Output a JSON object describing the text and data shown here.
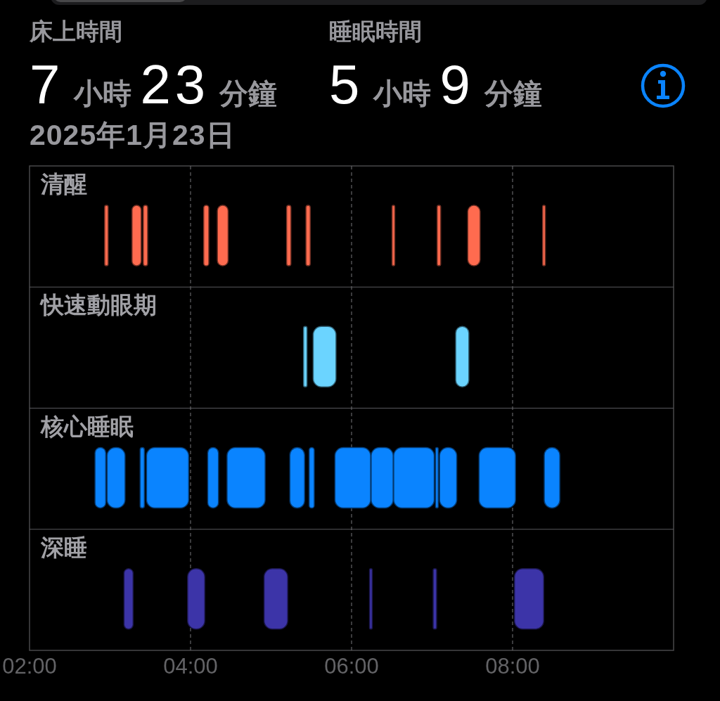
{
  "chart_data": {
    "type": "bar",
    "orientation": "horizontal",
    "subtitle": "2025年1月23日",
    "annotations": [
      "床上時間",
      "7小時23分鐘",
      "睡眠時間",
      "5小時9分鐘"
    ],
    "categories": [
      "清醒",
      "快速動眼期",
      "核心睡眠",
      "深睡"
    ],
    "xlim": [
      2,
      10
    ],
    "xticks": [
      {
        "value": 2,
        "label": "02:00"
      },
      {
        "value": 4,
        "label": "04:00"
      },
      {
        "value": 6,
        "label": "06:00"
      },
      {
        "value": 8,
        "label": "08:00"
      }
    ],
    "grid": true,
    "series": [
      {
        "color": "#0a84ff",
        "values": [
          null,
          null,
          0.12,
          null
        ],
        "base": [
          null,
          null,
          2.82,
          null
        ]
      },
      {
        "color": "#ff6b4f",
        "values": [
          0.03,
          null,
          null,
          null
        ],
        "base": [
          2.94,
          null,
          null,
          null
        ]
      },
      {
        "color": "#0a84ff",
        "values": [
          null,
          null,
          0.21,
          null
        ],
        "base": [
          null,
          null,
          2.97,
          null
        ]
      },
      {
        "color": "#3c34a8",
        "values": [
          null,
          null,
          null,
          0.1
        ],
        "base": [
          null,
          null,
          null,
          3.18
        ]
      },
      {
        "color": "#ff6b4f",
        "values": [
          0.1,
          null,
          null,
          null
        ],
        "base": [
          3.28,
          null,
          null,
          null
        ]
      },
      {
        "color": "#0a84ff",
        "values": [
          null,
          null,
          0.04,
          null
        ],
        "base": [
          null,
          null,
          3.38,
          null
        ]
      },
      {
        "color": "#ff6b4f",
        "values": [
          0.04,
          null,
          null,
          null
        ],
        "base": [
          3.42,
          null,
          null,
          null
        ]
      },
      {
        "color": "#0a84ff",
        "values": [
          null,
          null,
          0.51,
          null
        ],
        "base": [
          null,
          null,
          3.46,
          null
        ]
      },
      {
        "color": "#3c34a8",
        "values": [
          null,
          null,
          null,
          0.2
        ],
        "base": [
          null,
          null,
          null,
          3.97
        ]
      },
      {
        "color": "#ff6b4f",
        "values": [
          0.05,
          null,
          null,
          null
        ],
        "base": [
          4.17,
          null,
          null,
          null
        ]
      },
      {
        "color": "#0a84ff",
        "values": [
          null,
          null,
          0.12,
          null
        ],
        "base": [
          null,
          null,
          4.22,
          null
        ]
      },
      {
        "color": "#ff6b4f",
        "values": [
          0.12,
          null,
          null,
          null
        ],
        "base": [
          4.34,
          null,
          null,
          null
        ]
      },
      {
        "color": "#0a84ff",
        "values": [
          null,
          null,
          0.46,
          null
        ],
        "base": [
          null,
          null,
          4.46,
          null
        ]
      },
      {
        "color": "#3c34a8",
        "values": [
          null,
          null,
          null,
          0.28
        ],
        "base": [
          null,
          null,
          null,
          4.92
        ]
      },
      {
        "color": "#ff6b4f",
        "values": [
          0.04,
          null,
          null,
          null
        ],
        "base": [
          5.2,
          null,
          null,
          null
        ]
      },
      {
        "color": "#0a84ff",
        "values": [
          null,
          null,
          0.17,
          null
        ],
        "base": [
          null,
          null,
          5.24,
          null
        ]
      },
      {
        "color": "#6bd4ff",
        "values": [
          null,
          0.03,
          null,
          null
        ],
        "base": [
          null,
          5.41,
          null,
          null
        ]
      },
      {
        "color": "#ff6b4f",
        "values": [
          0.04,
          null,
          null,
          null
        ],
        "base": [
          5.44,
          null,
          null,
          null
        ]
      },
      {
        "color": "#0a84ff",
        "values": [
          null,
          null,
          0.05,
          null
        ],
        "base": [
          null,
          null,
          5.48,
          null
        ]
      },
      {
        "color": "#6bd4ff",
        "values": [
          null,
          0.27,
          null,
          null
        ],
        "base": [
          null,
          5.53,
          null,
          null
        ]
      },
      {
        "color": "#0a84ff",
        "values": [
          null,
          null,
          0.43,
          null
        ],
        "base": [
          null,
          null,
          5.8,
          null
        ]
      },
      {
        "color": "#3c34a8",
        "values": [
          null,
          null,
          null,
          0.02
        ],
        "base": [
          null,
          null,
          null,
          6.23
        ]
      },
      {
        "color": "#0a84ff",
        "values": [
          null,
          null,
          0.26,
          null
        ],
        "base": [
          null,
          null,
          6.25,
          null
        ]
      },
      {
        "color": "#ff6b4f",
        "values": [
          0.02,
          null,
          null,
          null
        ],
        "base": [
          6.51,
          null,
          null,
          null
        ]
      },
      {
        "color": "#0a84ff",
        "values": [
          null,
          null,
          0.49,
          null
        ],
        "base": [
          null,
          null,
          6.53,
          null
        ]
      },
      {
        "color": "#3c34a8",
        "values": [
          null,
          null,
          null,
          0.03
        ],
        "base": [
          null,
          null,
          null,
          7.02
        ]
      },
      {
        "color": "#0a84ff",
        "values": [
          null,
          null,
          0.02,
          null
        ],
        "base": [
          null,
          null,
          7.05,
          null
        ]
      },
      {
        "color": "#ff6b4f",
        "values": [
          0.03,
          null,
          null,
          null
        ],
        "base": [
          7.07,
          null,
          null,
          null
        ]
      },
      {
        "color": "#0a84ff",
        "values": [
          null,
          null,
          0.2,
          null
        ],
        "base": [
          null,
          null,
          7.1,
          null
        ]
      },
      {
        "color": "#6bd4ff",
        "values": [
          null,
          0.15,
          null,
          null
        ],
        "base": [
          null,
          7.3,
          null,
          null
        ]
      },
      {
        "color": "#ff6b4f",
        "values": [
          0.14,
          null,
          null,
          null
        ],
        "base": [
          7.45,
          null,
          null,
          null
        ]
      },
      {
        "color": "#0a84ff",
        "values": [
          null,
          null,
          0.44,
          null
        ],
        "base": [
          null,
          null,
          7.59,
          null
        ]
      },
      {
        "color": "#3c34a8",
        "values": [
          null,
          null,
          null,
          0.35
        ],
        "base": [
          null,
          null,
          null,
          8.03
        ]
      },
      {
        "color": "#ff6b4f",
        "values": [
          0.02,
          null,
          null,
          null
        ],
        "base": [
          8.38,
          null,
          null,
          null
        ]
      },
      {
        "color": "#0a84ff",
        "values": [
          null,
          null,
          0.18,
          null
        ],
        "base": [
          null,
          null,
          8.4,
          null
        ]
      }
    ]
  }
}
